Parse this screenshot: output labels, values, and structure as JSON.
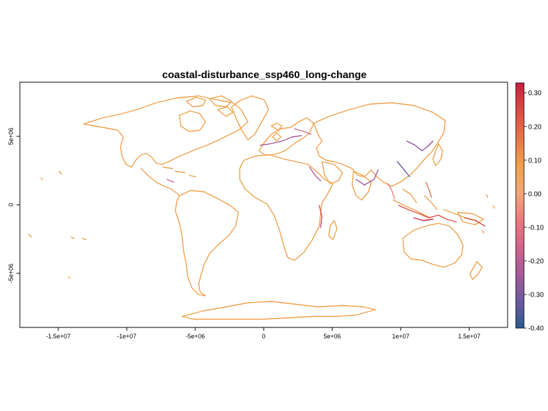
{
  "title": "coastal-disturbance_ssp460_long-change",
  "map": {
    "projection": "Robinson",
    "x_axis": {
      "ticks": [
        {
          "value": -15000000,
          "label": "-1.5e+07"
        },
        {
          "value": -10000000,
          "label": "-1e+07"
        },
        {
          "value": -5000000,
          "label": "-5e+06"
        },
        {
          "value": 0,
          "label": "0"
        },
        {
          "value": 5000000,
          "label": "5e+06"
        },
        {
          "value": 10000000,
          "label": "1e+07"
        },
        {
          "value": 15000000,
          "label": "1.5e+07"
        }
      ]
    },
    "y_axis": {
      "ticks": [
        {
          "value": 5000000,
          "label": "5e+06"
        },
        {
          "value": 0,
          "label": "0"
        },
        {
          "value": -5000000,
          "label": "-5e+06"
        }
      ]
    },
    "dominant_color": "#f0a04a"
  },
  "legend": {
    "range": [
      -0.4,
      0.33
    ],
    "labels": [
      "0.30",
      "0.20",
      "0.10",
      "0.00",
      "-0.10",
      "-0.20",
      "-0.30",
      "-0.40"
    ],
    "colors": [
      "#2a5a8c",
      "#6d5a9e",
      "#a65a9a",
      "#d2648a",
      "#ec7a7e",
      "#f2a877",
      "#f0a04a",
      "#e6744a",
      "#dc4a44",
      "#c81e3e"
    ]
  }
}
